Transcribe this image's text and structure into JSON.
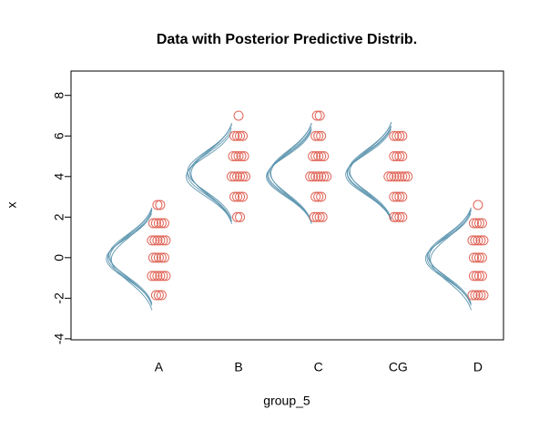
{
  "chart_data": {
    "type": "strip",
    "title": "Data with Posterior Predictive Distrib.",
    "xlabel": "group_5",
    "ylabel": "x",
    "categories": [
      "A",
      "B",
      "C",
      "CG",
      "D"
    ],
    "xlim": [
      -0.1,
      5.32
    ],
    "ylim": [
      -4.05,
      9.2
    ],
    "yticks": [
      -4,
      -2,
      0,
      2,
      4,
      6,
      8
    ],
    "point_color": "#e0675a",
    "curve_color": "#5f97b0",
    "points": [
      [
        -1.85,
        -1.85,
        -1.85,
        -0.9,
        -0.9,
        -0.9,
        -0.9,
        -0.9,
        -0.9,
        0,
        0,
        0,
        0,
        0,
        0.85,
        0.85,
        0.85,
        0.85,
        0.85,
        0.85,
        1.7,
        1.7,
        1.7,
        1.7,
        1.7,
        2.6,
        2.6
      ],
      [
        2,
        2,
        3,
        3,
        3,
        3,
        4,
        4,
        4,
        4,
        4,
        4,
        5,
        5,
        5,
        5,
        5,
        6,
        6,
        6,
        6,
        7
      ],
      [
        2,
        2,
        2,
        2,
        3,
        3,
        3,
        4,
        4,
        4,
        4,
        4,
        4,
        4,
        5,
        5,
        5,
        5,
        5,
        6,
        6,
        6,
        7,
        7
      ],
      [
        2,
        2,
        2,
        2,
        3,
        3,
        3,
        3,
        4,
        4,
        4,
        4,
        4,
        4,
        4,
        4,
        5,
        5,
        5,
        5,
        6,
        6,
        6,
        6
      ],
      [
        -1.85,
        -1.85,
        -1.85,
        -1.85,
        -1.85,
        -0.9,
        -0.9,
        -0.9,
        -0.9,
        0,
        0,
        0,
        0,
        0.85,
        0.85,
        0.85,
        0.85,
        0.85,
        1.7,
        1.7,
        1.7,
        1.7,
        2.6
      ]
    ],
    "curves": [
      [
        {
          "mean": 0,
          "sd": 1.0
        },
        {
          "mean": 0.05,
          "sd": 1.05
        },
        {
          "mean": -0.05,
          "sd": 0.97
        },
        {
          "mean": 0.1,
          "sd": 1.02
        },
        {
          "mean": -0.1,
          "sd": 1.08
        }
      ],
      [
        {
          "mean": 4.1,
          "sd": 1.0
        },
        {
          "mean": 4.2,
          "sd": 1.05
        },
        {
          "mean": 4.0,
          "sd": 0.97
        },
        {
          "mean": 4.15,
          "sd": 1.08
        },
        {
          "mean": 4.25,
          "sd": 1.0
        }
      ],
      [
        {
          "mean": 4.1,
          "sd": 1.02
        },
        {
          "mean": 4.2,
          "sd": 1.06
        },
        {
          "mean": 4.0,
          "sd": 0.98
        },
        {
          "mean": 4.15,
          "sd": 1.08
        },
        {
          "mean": 4.05,
          "sd": 1.0
        }
      ],
      [
        {
          "mean": 4.2,
          "sd": 1.0
        },
        {
          "mean": 4.3,
          "sd": 1.03
        },
        {
          "mean": 4.1,
          "sd": 0.97
        },
        {
          "mean": 4.25,
          "sd": 1.06
        },
        {
          "mean": 4.15,
          "sd": 1.0
        }
      ],
      [
        {
          "mean": 0,
          "sd": 1.0
        },
        {
          "mean": 0.05,
          "sd": 1.05
        },
        {
          "mean": -0.05,
          "sd": 0.97
        },
        {
          "mean": 0.1,
          "sd": 1.02
        },
        {
          "mean": -0.1,
          "sd": 1.08
        }
      ]
    ]
  }
}
